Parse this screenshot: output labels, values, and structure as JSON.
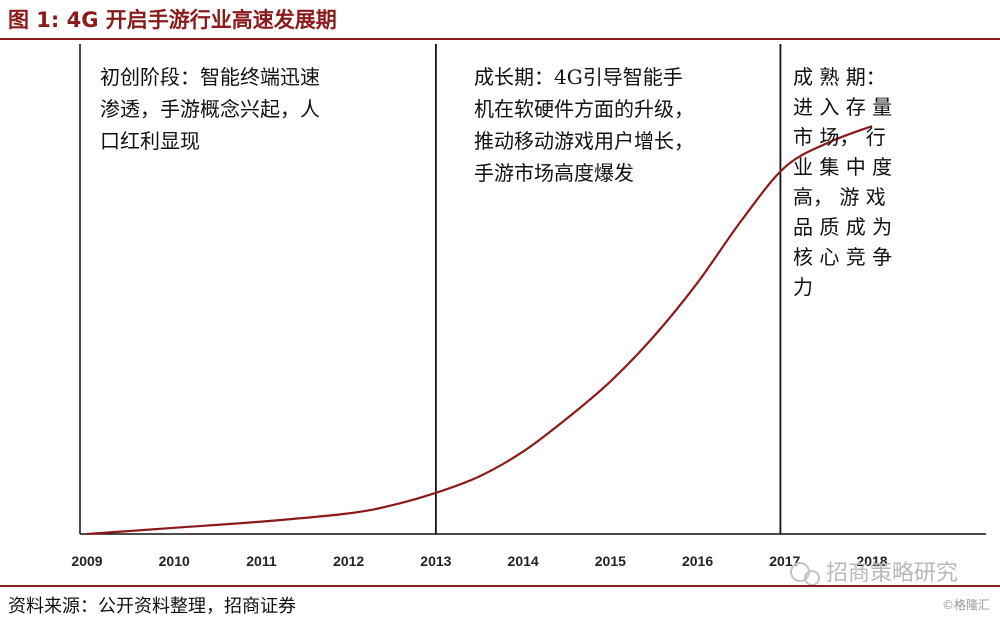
{
  "header": {
    "title": "图 1:  4G 开启手游行业高速发展期"
  },
  "chart_data": {
    "type": "line",
    "title": "",
    "xlabel": "",
    "ylabel": "",
    "x_ticks": [
      "2009",
      "2010",
      "2011",
      "2012",
      "2013",
      "2014",
      "2015",
      "2016",
      "2017",
      "2018"
    ],
    "x_range": [
      2009,
      2018
    ],
    "y_range": [
      0,
      1
    ],
    "y_axis_visible": false,
    "grid": false,
    "line_color": "#8b1a1a",
    "series": [
      {
        "name": "",
        "x": [
          2009,
          2010,
          2011,
          2012,
          2012.5,
          2013,
          2013.5,
          2014,
          2014.5,
          2015,
          2015.5,
          2016,
          2016.5,
          2017,
          2017.5,
          2018
        ],
        "y": [
          0.0,
          0.015,
          0.03,
          0.05,
          0.07,
          0.1,
          0.14,
          0.2,
          0.28,
          0.37,
          0.48,
          0.61,
          0.76,
          0.89,
          0.95,
          0.99
        ]
      }
    ],
    "phase_dividers_x": [
      2013,
      2016.95
    ],
    "annotations": [
      {
        "lines": [
          "初创阶段：智能终端迅速",
          "渗透，手游概念兴起，人",
          "口红利显现"
        ]
      },
      {
        "lines": [
          "成长期：4G引导智能手",
          "机在软硬件方面的升级，",
          "推动移动游戏用户增长，",
          "手游市场高度爆发"
        ]
      },
      {
        "lines": [
          "成 熟 期：",
          "进 入 存 量",
          "市 场， 行",
          "业 集 中 度",
          "高， 游 戏",
          "品 质 成 为",
          "核 心 竞 争",
          "力"
        ]
      }
    ]
  },
  "watermark": {
    "text": "招商策略研究"
  },
  "footer": {
    "source": "资料来源：公开资料整理，招商证券",
    "credit": "©格隆汇"
  }
}
